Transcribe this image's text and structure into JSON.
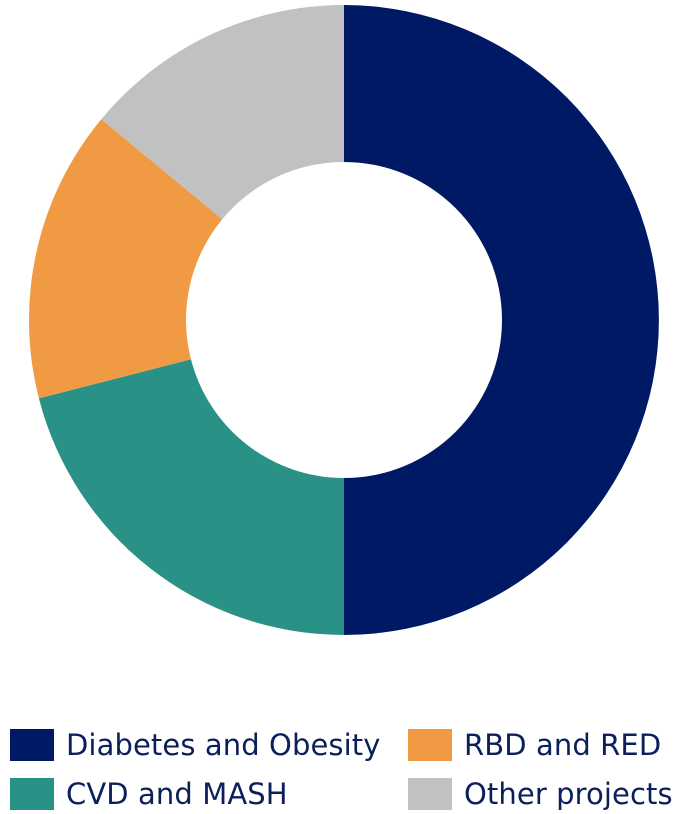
{
  "colors": {
    "diabetes_obesity": "#001965",
    "cvd_mash": "#2a9187",
    "rbd_red": "#f09a43",
    "other_projects": "#c1c1c1",
    "legend_text": "#0b1f5b"
  },
  "chart_data": {
    "type": "pie",
    "donut": true,
    "title": "",
    "categories": [
      "Diabetes and Obesity",
      "CVD and MASH",
      "RBD and RED",
      "Other projects"
    ],
    "values": [
      50,
      21,
      15,
      14
    ],
    "legend_position": "bottom"
  },
  "legend": {
    "items": [
      {
        "label": "Diabetes and Obesity",
        "color": "#001965"
      },
      {
        "label": "RBD and RED",
        "color": "#f09a43"
      },
      {
        "label": "CVD and MASH",
        "color": "#2a9187"
      },
      {
        "label": "Other projects",
        "color": "#c1c1c1"
      }
    ]
  }
}
